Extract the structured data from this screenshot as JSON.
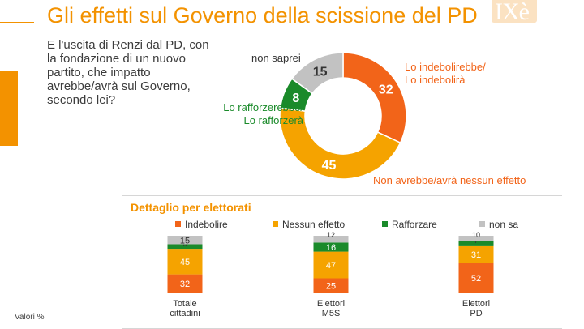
{
  "header": {
    "title": "Gli effetti sul Governo della scissione del PD",
    "logo_text": "IXè"
  },
  "question": "E l'uscita di Renzi dal PD, con la fondazione di un nuovo partito, che impatto avrebbe/avrà sul Governo, secondo lei?",
  "footer": {
    "note": "Valori %"
  },
  "colors": {
    "indebolire": "#f26419",
    "nessun": "#f5a300",
    "rafforzare": "#1a8a2a",
    "nonsa": "#c2c2c2",
    "accent": "#f39200"
  },
  "chart_data": [
    {
      "type": "pie",
      "style": "donut",
      "slices": [
        {
          "key": "indebolire",
          "label_lines": [
            "Lo indebolirebbe/",
            "Lo indebolirà"
          ],
          "value": 32
        },
        {
          "key": "nessun",
          "label_lines": [
            "Non avrebbe/avrà nessun effetto"
          ],
          "value": 45
        },
        {
          "key": "rafforzare",
          "label_lines": [
            "Lo rafforzerebbe/",
            "Lo rafforzerà"
          ],
          "value": 8
        },
        {
          "key": "nonsa",
          "label_lines": [
            "non saprei"
          ],
          "value": 15
        }
      ]
    },
    {
      "type": "bar",
      "stacked": true,
      "title": "Dettaglio per elettorati",
      "legend_position": "top",
      "categories": [
        [
          "Totale",
          "cittadini"
        ],
        [
          "Elettori",
          "M5S"
        ],
        [
          "Elettori",
          "PD"
        ]
      ],
      "series": [
        {
          "name": "Indebolire",
          "key": "indebolire",
          "values": [
            32,
            25,
            52
          ]
        },
        {
          "name": "Nessun effetto",
          "key": "nessun",
          "values": [
            45,
            47,
            31
          ]
        },
        {
          "name": "Rafforzare",
          "key": "rafforzare",
          "values": [
            8,
            16,
            7
          ]
        },
        {
          "name": "non sa",
          "key": "nonsa",
          "values": [
            15,
            12,
            10
          ]
        }
      ]
    }
  ]
}
